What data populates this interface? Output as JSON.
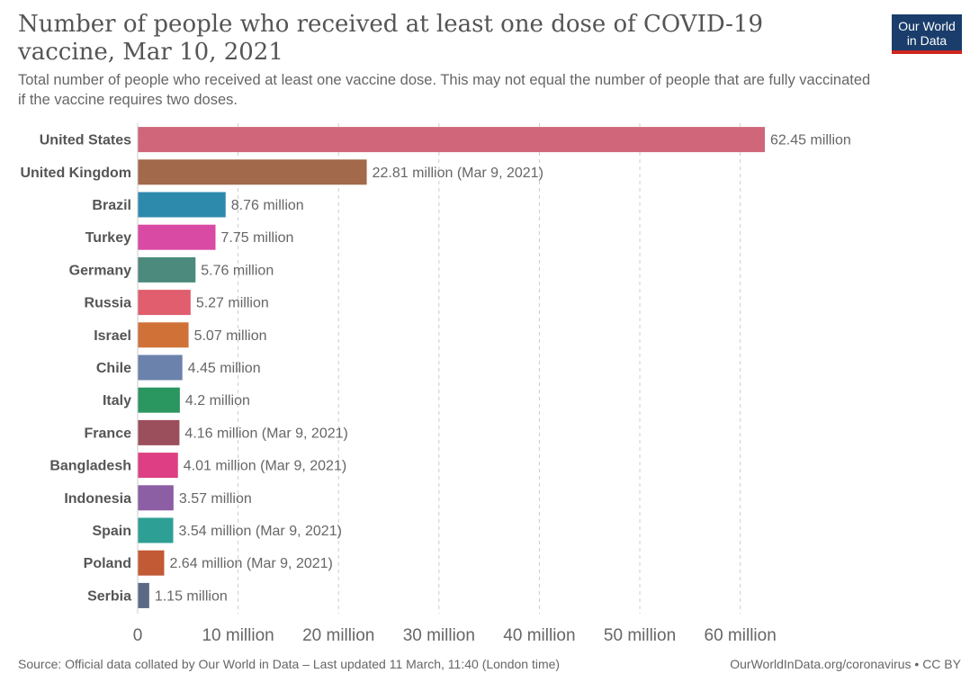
{
  "header": {
    "title": "Number of people who received at least one dose of COVID-19 vaccine, Mar 10, 2021",
    "subtitle": "Total number of people who received at least one vaccine dose. This may not equal the number of people that are fully vaccinated if the vaccine requires two doses."
  },
  "logo": {
    "line1": "Our World",
    "line2": "in Data",
    "bg": "#1a3d6b",
    "accent": "#ce261e"
  },
  "footer": {
    "source": "Source: Official data collated by Our World in Data – Last updated 11 March, 11:40 (London time)",
    "credit": "OurWorldInData.org/coronavirus • CC BY"
  },
  "chart_data": {
    "type": "bar",
    "orientation": "horizontal",
    "categories": [
      "United States",
      "United Kingdom",
      "Brazil",
      "Turkey",
      "Germany",
      "Russia",
      "Israel",
      "Chile",
      "Italy",
      "France",
      "Bangladesh",
      "Indonesia",
      "Spain",
      "Poland",
      "Serbia"
    ],
    "values": [
      62.45,
      22.81,
      8.76,
      7.75,
      5.76,
      5.27,
      5.07,
      4.45,
      4.2,
      4.16,
      4.01,
      3.57,
      3.54,
      2.64,
      1.15
    ],
    "labels": [
      "62.45 million",
      "22.81 million (Mar 9, 2021)",
      "8.76 million",
      "7.75 million",
      "5.76 million",
      "5.27 million",
      "5.07 million",
      "4.45 million",
      "4.2 million",
      "4.16 million (Mar 9, 2021)",
      "4.01 million (Mar 9, 2021)",
      "3.57 million",
      "3.54 million (Mar 9, 2021)",
      "2.64 million (Mar 9, 2021)",
      "1.15 million"
    ],
    "colors": [
      "#d0667a",
      "#a2694a",
      "#2e8aad",
      "#d94aa4",
      "#4b8a7d",
      "#e05e6d",
      "#d07238",
      "#6b82ac",
      "#2a9660",
      "#9b4f5c",
      "#dd3e84",
      "#8c5ea4",
      "#2e9f94",
      "#c25a35",
      "#5b6a84"
    ],
    "xticks": [
      0,
      10,
      20,
      30,
      40,
      50,
      60
    ],
    "xtick_labels": [
      "0",
      "10 million",
      "20 million",
      "30 million",
      "40 million",
      "50 million",
      "60 million"
    ],
    "xlim": [
      0,
      62.45
    ],
    "grid": true
  }
}
